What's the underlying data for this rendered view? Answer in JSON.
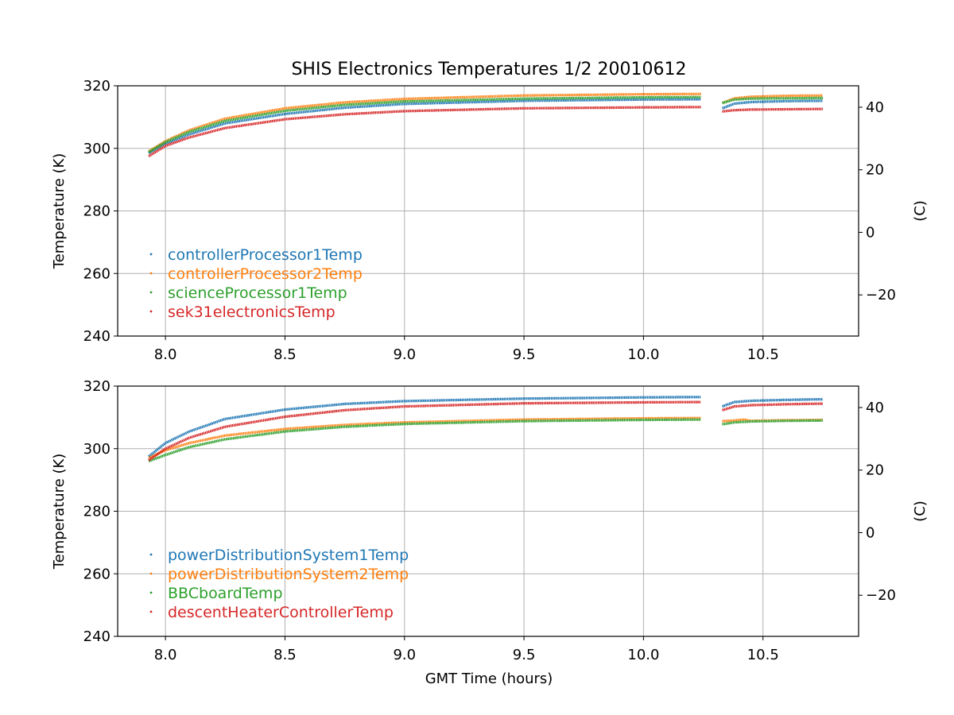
{
  "title": "SHIS Electronics Temperatures 1/2 20010612",
  "xlabel": "GMT Time (hours)",
  "chart_data": [
    {
      "type": "scatter",
      "ylabel": "Temperature (K)",
      "ylabel_right": "(C)",
      "xlim": [
        7.8,
        10.9
      ],
      "ylim": [
        240,
        320
      ],
      "ylim_right": [
        -33.15,
        46.85
      ],
      "x_ticks": [
        "8.0",
        "8.5",
        "9.0",
        "9.5",
        "10.0",
        "10.5"
      ],
      "y_ticks": [
        "240",
        "260",
        "280",
        "300",
        "320"
      ],
      "y_ticks_right": [
        "−20",
        "0",
        "20",
        "40"
      ],
      "grid": true,
      "legend_position": "lower-left",
      "series": [
        {
          "name": "controllerProcessor1Temp",
          "color": "#1f77b4",
          "segments": [
            {
              "x": [
                7.93,
                8.0,
                8.1,
                8.25,
                8.5,
                8.75,
                9.0,
                9.5,
                10.0,
                10.24
              ],
              "y": [
                298.5,
                301.5,
                304.5,
                308.0,
                311.0,
                313.0,
                314.2,
                315.2,
                315.6,
                315.7
              ]
            },
            {
              "x": [
                10.33,
                10.38,
                10.45,
                10.6,
                10.75
              ],
              "y": [
                312.8,
                314.3,
                314.8,
                315.1,
                315.2
              ]
            }
          ]
        },
        {
          "name": "controllerProcessor2Temp",
          "color": "#ff7f0e",
          "segments": [
            {
              "x": [
                7.93,
                8.0,
                8.1,
                8.25,
                8.5,
                8.75,
                9.0,
                9.5,
                10.0,
                10.24
              ],
              "y": [
                299.0,
                302.3,
                305.8,
                309.5,
                312.8,
                314.7,
                315.8,
                316.9,
                317.3,
                317.4
              ]
            },
            {
              "x": [
                10.33,
                10.38,
                10.45,
                10.6,
                10.75
              ],
              "y": [
                314.5,
                316.0,
                316.5,
                316.8,
                316.9
              ]
            }
          ]
        },
        {
          "name": "scienceProcessor1Temp",
          "color": "#2ca02c",
          "segments": [
            {
              "x": [
                7.93,
                8.0,
                8.1,
                8.25,
                8.5,
                8.75,
                9.0,
                9.5,
                10.0,
                10.24
              ],
              "y": [
                298.8,
                302.0,
                305.3,
                308.8,
                312.0,
                313.9,
                315.0,
                315.9,
                316.3,
                316.4
              ]
            },
            {
              "x": [
                10.33,
                10.38,
                10.45,
                10.6,
                10.75
              ],
              "y": [
                314.5,
                315.6,
                315.9,
                316.0,
                316.1
              ]
            }
          ]
        },
        {
          "name": "sek31electronicsTemp",
          "color": "#d62728",
          "segments": [
            {
              "x": [
                7.93,
                8.0,
                8.1,
                8.25,
                8.5,
                8.75,
                9.0,
                9.5,
                10.0,
                10.24
              ],
              "y": [
                297.5,
                300.8,
                303.5,
                306.5,
                309.3,
                310.9,
                311.9,
                312.8,
                313.1,
                313.2
              ]
            },
            {
              "x": [
                10.33,
                10.38,
                10.45,
                10.6,
                10.75
              ],
              "y": [
                311.8,
                312.2,
                312.4,
                312.5,
                312.6
              ]
            }
          ]
        }
      ]
    },
    {
      "type": "scatter",
      "ylabel": "Temperature (K)",
      "ylabel_right": "(C)",
      "xlim": [
        7.8,
        10.9
      ],
      "ylim": [
        240,
        320
      ],
      "ylim_right": [
        -33.15,
        46.85
      ],
      "x_ticks": [
        "8.0",
        "8.5",
        "9.0",
        "9.5",
        "10.0",
        "10.5"
      ],
      "y_ticks": [
        "240",
        "260",
        "280",
        "300",
        "320"
      ],
      "y_ticks_right": [
        "−20",
        "0",
        "20",
        "40"
      ],
      "grid": true,
      "legend_position": "lower-left",
      "series": [
        {
          "name": "powerDistributionSystem1Temp",
          "color": "#1f77b4",
          "segments": [
            {
              "x": [
                7.93,
                8.0,
                8.1,
                8.25,
                8.5,
                8.75,
                9.0,
                9.5,
                10.0,
                10.24
              ],
              "y": [
                297.5,
                301.8,
                305.5,
                309.5,
                312.5,
                314.3,
                315.2,
                316.0,
                316.4,
                316.5
              ]
            },
            {
              "x": [
                10.33,
                10.38,
                10.45,
                10.6,
                10.75
              ],
              "y": [
                313.5,
                314.9,
                315.3,
                315.6,
                315.8
              ]
            }
          ]
        },
        {
          "name": "powerDistributionSystem2Temp",
          "color": "#ff7f0e",
          "segments": [
            {
              "x": [
                7.93,
                8.0,
                8.1,
                8.25,
                8.5,
                8.75,
                9.0,
                9.5,
                10.0,
                10.24
              ],
              "y": [
                297.0,
                299.5,
                301.8,
                304.2,
                306.3,
                307.6,
                308.4,
                309.3,
                309.7,
                309.8
              ]
            },
            {
              "x": [
                10.33,
                10.38,
                10.42,
                10.45,
                10.6,
                10.75
              ],
              "y": [
                308.8,
                309.0,
                309.3,
                308.9,
                309.1,
                309.2
              ]
            }
          ]
        },
        {
          "name": "BBCboardTemp",
          "color": "#2ca02c",
          "segments": [
            {
              "x": [
                7.93,
                8.0,
                8.1,
                8.25,
                8.5,
                8.75,
                9.0,
                9.5,
                10.0,
                10.24
              ],
              "y": [
                296.0,
                298.0,
                300.5,
                303.0,
                305.5,
                307.0,
                307.9,
                308.8,
                309.2,
                309.3
              ]
            },
            {
              "x": [
                10.33,
                10.38,
                10.45,
                10.6,
                10.75
              ],
              "y": [
                307.8,
                308.4,
                308.7,
                308.9,
                309.0
              ]
            }
          ]
        },
        {
          "name": "descentHeaterControllerTemp",
          "color": "#d62728",
          "segments": [
            {
              "x": [
                7.93,
                8.0,
                8.1,
                8.25,
                8.5,
                8.75,
                9.0,
                9.5,
                10.0,
                10.24
              ],
              "y": [
                296.3,
                300.0,
                303.5,
                307.0,
                310.2,
                312.3,
                313.5,
                314.5,
                314.8,
                314.9
              ]
            },
            {
              "x": [
                10.33,
                10.38,
                10.45,
                10.6,
                10.75
              ],
              "y": [
                312.3,
                313.5,
                313.9,
                314.2,
                314.4
              ]
            }
          ]
        }
      ]
    }
  ]
}
